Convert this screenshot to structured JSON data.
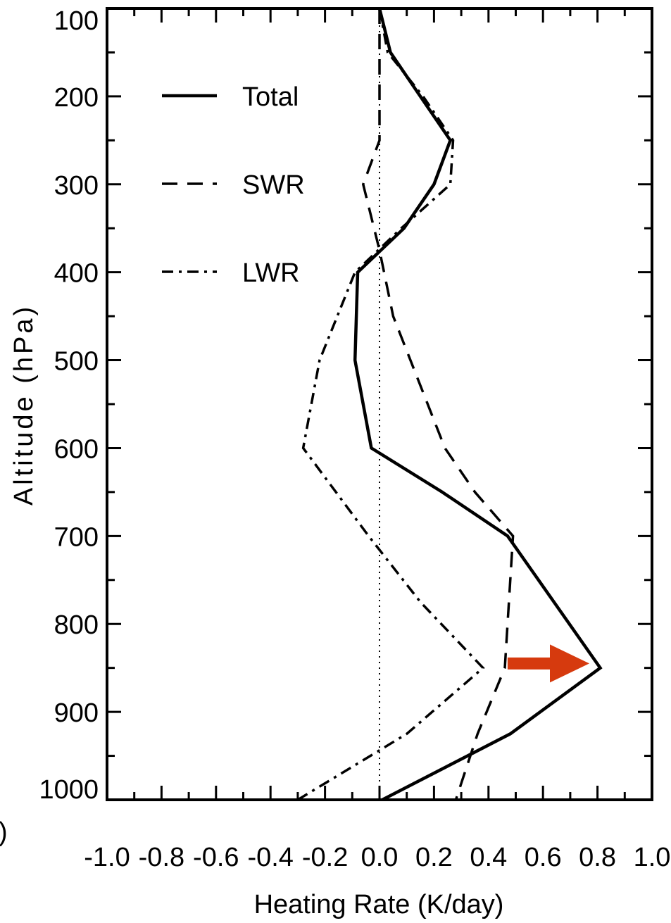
{
  "chart_data": {
    "type": "line",
    "title": "",
    "xlabel": "Heating Rate (K/day)",
    "ylabel": "Altitude (hPa)",
    "xlim": [
      -1.0,
      1.0
    ],
    "ylim": [
      1000,
      100
    ],
    "y_inverted": true,
    "x_ticks": [
      "-1.0",
      "-0.8",
      "-0.6",
      "-0.4",
      "-0.2",
      "0.0",
      "0.2",
      "0.4",
      "0.6",
      "0.8",
      "1.0"
    ],
    "y_ticks": [
      "100",
      "200",
      "300",
      "400",
      "500",
      "600",
      "700",
      "800",
      "900",
      "1000"
    ],
    "zero_reference_line": "dotted vertical at 0.0",
    "legend_position": "top-left",
    "series": [
      {
        "name": "Total",
        "style": "solid",
        "points": [
          [
            0.0,
            100
          ],
          [
            0.04,
            150
          ],
          [
            0.15,
            200
          ],
          [
            0.26,
            250
          ],
          [
            0.2,
            300
          ],
          [
            0.09,
            350
          ],
          [
            -0.08,
            400
          ],
          [
            -0.09,
            500
          ],
          [
            -0.03,
            600
          ],
          [
            0.23,
            650
          ],
          [
            0.47,
            700
          ],
          [
            0.64,
            775
          ],
          [
            0.81,
            850
          ],
          [
            0.48,
            925
          ],
          [
            0.01,
            1000
          ]
        ]
      },
      {
        "name": "SWR",
        "style": "dashed",
        "points": [
          [
            0.0,
            100
          ],
          [
            0.0,
            250
          ],
          [
            -0.06,
            300
          ],
          [
            0.0,
            375
          ],
          [
            0.05,
            450
          ],
          [
            0.24,
            600
          ],
          [
            0.35,
            650
          ],
          [
            0.49,
            700
          ],
          [
            0.46,
            850
          ],
          [
            0.36,
            925
          ],
          [
            0.28,
            1000
          ]
        ]
      },
      {
        "name": "LWR",
        "style": "dash-dot",
        "points": [
          [
            0.0,
            100
          ],
          [
            0.03,
            150
          ],
          [
            0.16,
            200
          ],
          [
            0.27,
            250
          ],
          [
            0.26,
            300
          ],
          [
            0.08,
            350
          ],
          [
            -0.09,
            400
          ],
          [
            -0.22,
            500
          ],
          [
            -0.28,
            600
          ],
          [
            -0.04,
            700
          ],
          [
            0.15,
            775
          ],
          [
            0.38,
            850
          ],
          [
            0.1,
            925
          ],
          [
            -0.3,
            1000
          ]
        ]
      }
    ],
    "annotation": {
      "type": "arrow",
      "color": "#d63a0e",
      "x_from": 0.47,
      "x_to": 0.77,
      "y": 845
    },
    "colors": {
      "lines": "#000000",
      "arrow": "#d63a0e",
      "background": "#ffffff"
    }
  },
  "partial_panel_label": ")"
}
